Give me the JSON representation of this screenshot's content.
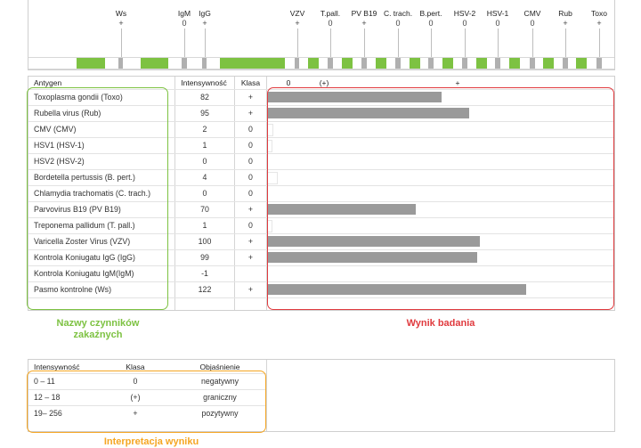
{
  "strip": {
    "markers": [
      {
        "label": "Ws",
        "value": "+"
      },
      {
        "label": "IgM",
        "value": "0"
      },
      {
        "label": "IgG",
        "value": "+"
      },
      {
        "label": "VZV",
        "value": "+"
      },
      {
        "label": "T.pall.",
        "value": "0"
      },
      {
        "label": "PV B19",
        "value": "+"
      },
      {
        "label": "C. trach.",
        "value": "0"
      },
      {
        "label": "B.pert.",
        "value": "0"
      },
      {
        "label": "HSV-2",
        "value": "0"
      },
      {
        "label": "HSV-1",
        "value": "0"
      },
      {
        "label": "CMV",
        "value": "0"
      },
      {
        "label": "Rub",
        "value": "+"
      },
      {
        "label": "Toxo",
        "value": "+"
      }
    ],
    "colors": {
      "band": "#7dc242",
      "tick": "#b0b0b0"
    }
  },
  "table": {
    "headers": {
      "antigen": "Antygen",
      "intensity": "Intensywność",
      "class": "Klasa"
    },
    "scale_labels": [
      "0",
      "(+)",
      "+"
    ],
    "scale_max": 122,
    "rows": [
      {
        "antigen": "Toxoplasma gondii (Toxo)",
        "intensity": "82",
        "class": "+"
      },
      {
        "antigen": "Rubella virus (Rub)",
        "intensity": "95",
        "class": "+"
      },
      {
        "antigen": "CMV (CMV)",
        "intensity": "2",
        "class": "0"
      },
      {
        "antigen": "HSV1 (HSV-1)",
        "intensity": "1",
        "class": "0"
      },
      {
        "antigen": "HSV2 (HSV-2)",
        "intensity": "0",
        "class": "0"
      },
      {
        "antigen": "Bordetella pertussis (B. pert.)",
        "intensity": "4",
        "class": "0"
      },
      {
        "antigen": "Chlamydia trachomatis (C. trach.)",
        "intensity": "0",
        "class": "0"
      },
      {
        "antigen": "Parvovirus B19 (PV B19)",
        "intensity": "70",
        "class": "+"
      },
      {
        "antigen": "Treponema pallidum (T. pall.)",
        "intensity": "1",
        "class": "0"
      },
      {
        "antigen": "Varicella Zoster Virus (VZV)",
        "intensity": "100",
        "class": "+"
      },
      {
        "antigen": "Kontrola Koniugatu IgG (IgG)",
        "intensity": "99",
        "class": "+"
      },
      {
        "antigen": "Kontrola Koniugatu IgM(IgM)",
        "intensity": "-1",
        "class": ""
      },
      {
        "antigen": "Pasmo kontrolne (Ws)",
        "intensity": "122",
        "class": "+"
      }
    ],
    "colors": {
      "bar": "#9a9a9a"
    }
  },
  "captions": {
    "factors": "Nazwy czynników zakaźnych",
    "result": "Wynik badania",
    "interpretation": "Interpretacja wyniku"
  },
  "interpretation": {
    "headers": {
      "intensity": "Intensywność",
      "class": "Klasa",
      "explanation": "Objaśnienie"
    },
    "rows": [
      {
        "range": "0 – 11",
        "class": "0",
        "explanation": "negatywny"
      },
      {
        "range": "12 – 18",
        "class": "(+)",
        "explanation": "graniczny"
      },
      {
        "range": "19– 256",
        "class": "+",
        "explanation": "pozytywny"
      }
    ]
  },
  "colors": {
    "green": "#7dc242",
    "red": "#e03a3e",
    "orange": "#f5a623"
  }
}
